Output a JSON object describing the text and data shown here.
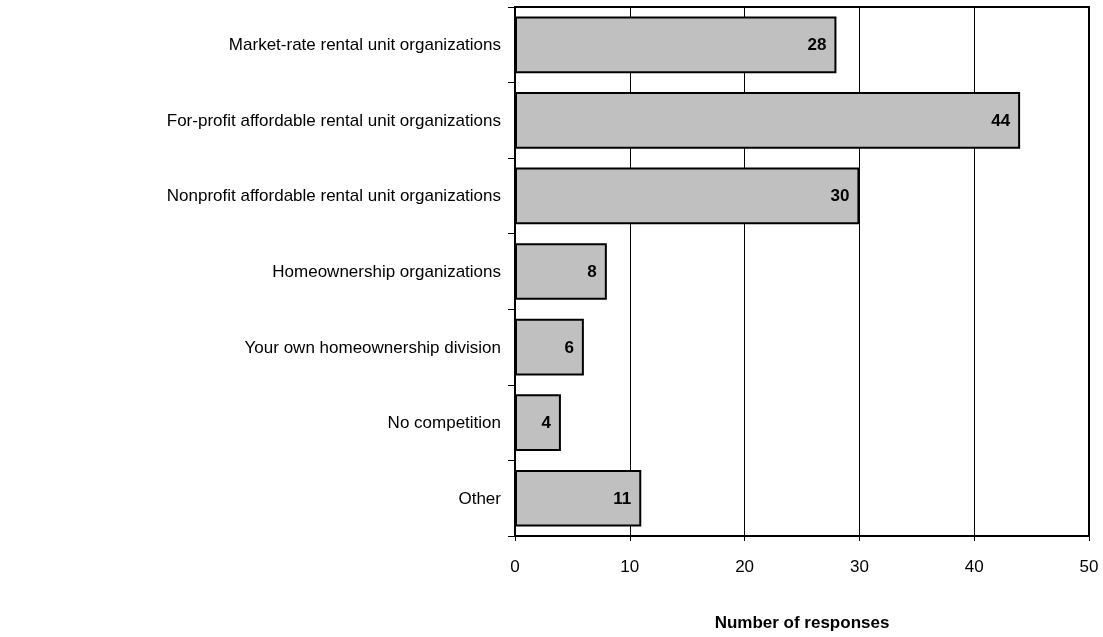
{
  "chart_data": {
    "type": "bar",
    "orientation": "horizontal",
    "xlabel": "Number of responses",
    "categories": [
      "Market-rate rental unit organizations",
      "For-profit affordable rental unit organizations",
      "Nonprofit affordable rental unit organizations",
      "Homeownership organizations",
      "Your own homeownership division",
      "No competition",
      "Other"
    ],
    "values": [
      28,
      44,
      30,
      8,
      6,
      4,
      11
    ],
    "color": "#c0c0c0",
    "xlim": [
      0,
      50
    ],
    "xticks": [
      0,
      10,
      20,
      30,
      40,
      50
    ],
    "grid": "x",
    "data_labels": true
  }
}
